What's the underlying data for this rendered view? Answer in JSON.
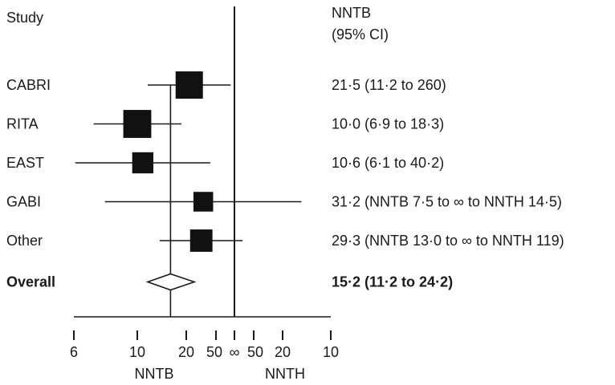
{
  "chart_data": {
    "type": "forest",
    "header": {
      "study": "Study",
      "estimate_line1": "NNTB",
      "estimate_line2": "(95% CI)"
    },
    "axis": {
      "ticks": [
        {
          "label": "6",
          "value": 6,
          "side": "NNTB"
        },
        {
          "label": "10",
          "value": 10,
          "side": "NNTB"
        },
        {
          "label": "20",
          "value": 20,
          "side": "NNTB"
        },
        {
          "label": "50",
          "value": 50,
          "side": "NNTB"
        },
        {
          "label": "∞",
          "value": "inf",
          "side": "none"
        },
        {
          "label": "50",
          "value": 50,
          "side": "NNTH"
        },
        {
          "label": "20",
          "value": 20,
          "side": "NNTH"
        },
        {
          "label": "10",
          "value": 10,
          "side": "NNTH"
        }
      ],
      "left_label": "NNTB",
      "right_label": "NNTH"
    },
    "studies": [
      {
        "name": "CABRI",
        "text": "21·5 (11·2 to 260)",
        "point": {
          "side": "NNTB",
          "value": 21.5
        },
        "lower": {
          "side": "NNTB",
          "value": 11.2
        },
        "upper": {
          "side": "NNTB",
          "value": 260
        },
        "weight": 1.0
      },
      {
        "name": "RITA",
        "text": "10·0 (6·9 to 18·3)",
        "point": {
          "side": "NNTB",
          "value": 10.0
        },
        "lower": {
          "side": "NNTB",
          "value": 6.9
        },
        "upper": {
          "side": "NNTB",
          "value": 18.3
        },
        "weight": 1.05
      },
      {
        "name": "EAST",
        "text": "10·6 (6·1 to 40·2)",
        "point": {
          "side": "NNTB",
          "value": 10.6
        },
        "lower": {
          "side": "NNTB",
          "value": 6.1
        },
        "upper": {
          "side": "NNTB",
          "value": 40.2
        },
        "weight": 0.6
      },
      {
        "name": "GABI",
        "text": "31·2 (NNTB 7·5 to ∞ to NNTH 14·5)",
        "point": {
          "side": "NNTB",
          "value": 31.2
        },
        "lower": {
          "side": "NNTB",
          "value": 7.5
        },
        "upper": {
          "side": "NNTH",
          "value": 14.5
        },
        "weight": 0.52
      },
      {
        "name": "Other",
        "text": "29·3 (NNTB 13·0 to ∞ to NNTH 119)",
        "point": {
          "side": "NNTB",
          "value": 29.3
        },
        "lower": {
          "side": "NNTB",
          "value": 13.0
        },
        "upper": {
          "side": "NNTH",
          "value": 119
        },
        "weight": 0.67
      }
    ],
    "overall": {
      "name": "Overall",
      "text": "15·2 (11·2 to 24·2)",
      "point": {
        "side": "NNTB",
        "value": 15.2
      },
      "lower": {
        "side": "NNTB",
        "value": 11.2
      },
      "upper": {
        "side": "NNTB",
        "value": 24.2
      }
    },
    "colors": {
      "ink": "#1a1a1a",
      "marker": "#111111",
      "diamond_fill": "#ffffff"
    }
  }
}
